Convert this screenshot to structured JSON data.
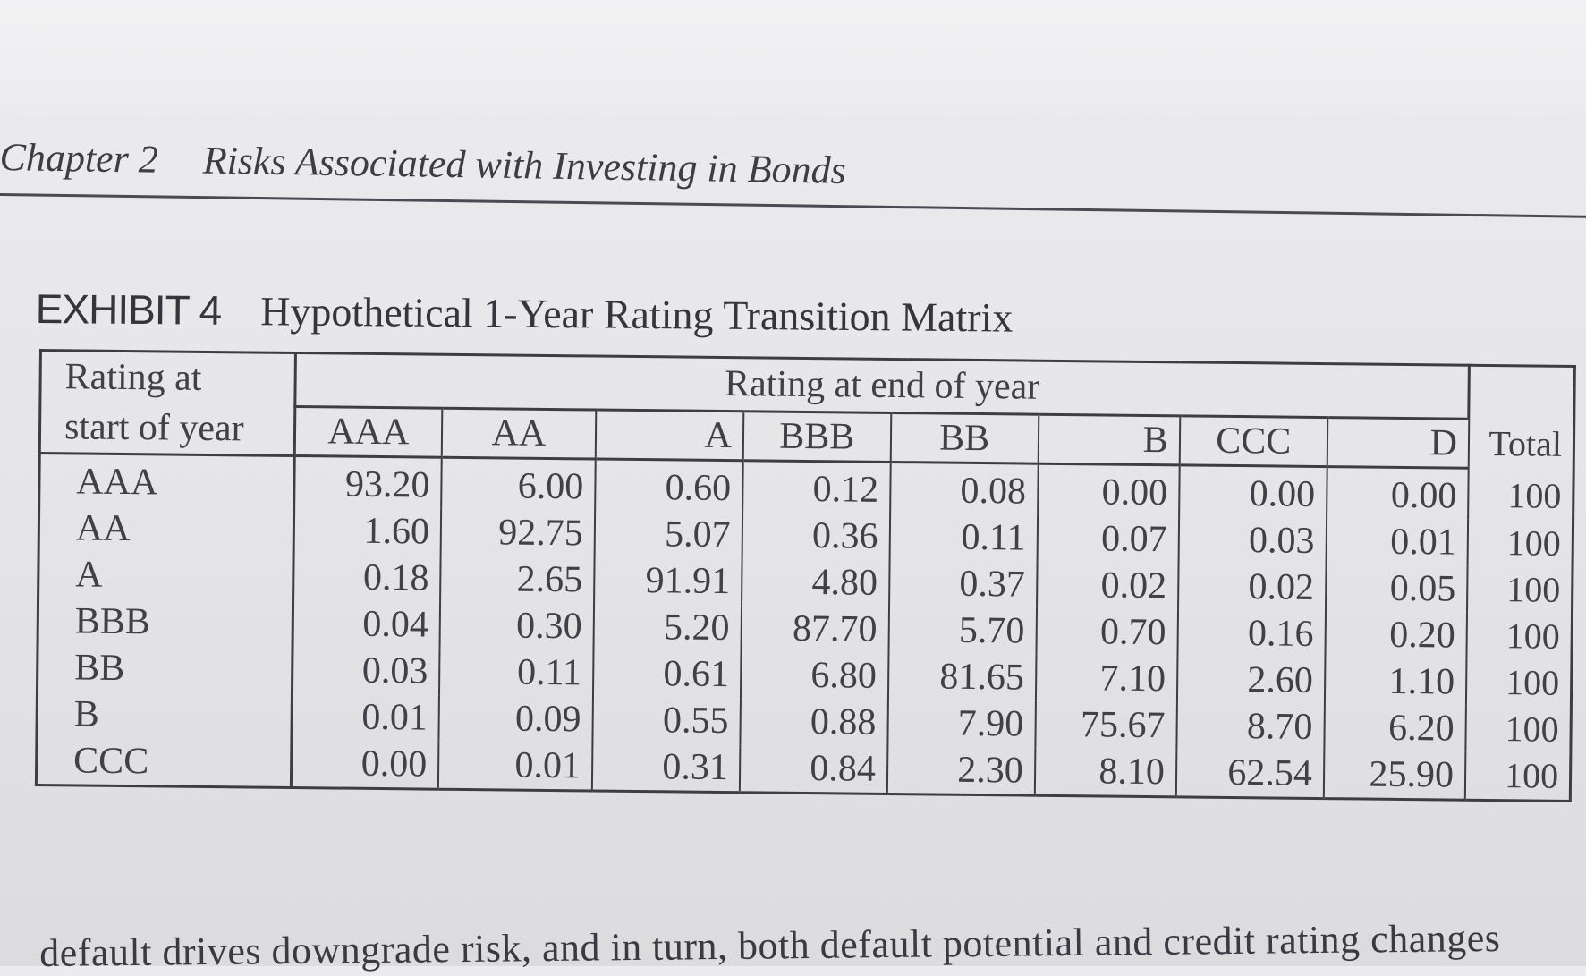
{
  "running_head": {
    "chapter": "Chapter 2",
    "title": "Risks Associated with Investing in Bonds"
  },
  "exhibit": {
    "number": "EXHIBIT 4",
    "title": "Hypothetical 1-Year Rating Transition Matrix"
  },
  "table": {
    "corner_label_line1": "Rating at",
    "corner_label_line2": "start of year",
    "group_header": "Rating at end of year",
    "total_header": "Total",
    "columns": [
      "AAA",
      "AA",
      "A",
      "BBB",
      "BB",
      "B",
      "CCC",
      "D"
    ],
    "rows": [
      {
        "label": "AAA",
        "values": [
          "93.20",
          "6.00",
          "0.60",
          "0.12",
          "0.08",
          "0.00",
          "0.00",
          "0.00"
        ],
        "total": "100"
      },
      {
        "label": "AA",
        "values": [
          "1.60",
          "92.75",
          "5.07",
          "0.36",
          "0.11",
          "0.07",
          "0.03",
          "0.01"
        ],
        "total": "100"
      },
      {
        "label": "A",
        "values": [
          "0.18",
          "2.65",
          "91.91",
          "4.80",
          "0.37",
          "0.02",
          "0.02",
          "0.05"
        ],
        "total": "100"
      },
      {
        "label": "BBB",
        "values": [
          "0.04",
          "0.30",
          "5.20",
          "87.70",
          "5.70",
          "0.70",
          "0.16",
          "0.20"
        ],
        "total": "100"
      },
      {
        "label": "BB",
        "values": [
          "0.03",
          "0.11",
          "0.61",
          "6.80",
          "81.65",
          "7.10",
          "2.60",
          "1.10"
        ],
        "total": "100"
      },
      {
        "label": "B",
        "values": [
          "0.01",
          "0.09",
          "0.55",
          "0.88",
          "7.90",
          "75.67",
          "8.70",
          "6.20"
        ],
        "total": "100"
      },
      {
        "label": "CCC",
        "values": [
          "0.00",
          "0.01",
          "0.31",
          "0.84",
          "2.30",
          "8.10",
          "62.54",
          "25.90"
        ],
        "total": "100"
      }
    ]
  },
  "body_text": "default drives downgrade risk, and in turn, both default potential and credit rating changes"
}
